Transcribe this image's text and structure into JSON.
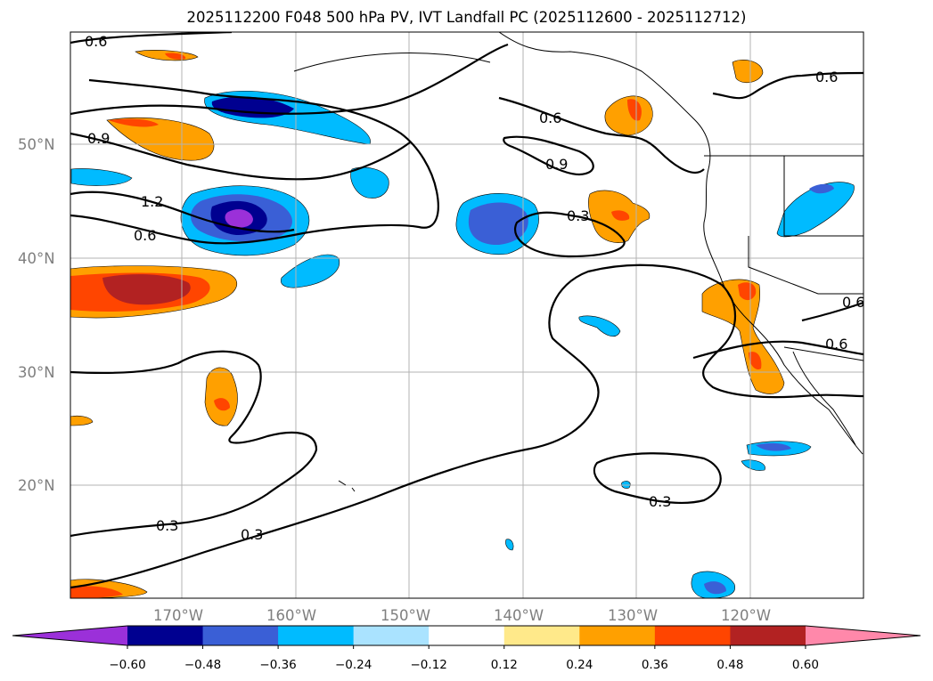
{
  "title": "2025112200 F048 500 hPa PV, IVT Landfall PC (2025112600 - 2025112712)",
  "map": {
    "latitude_labels": [
      "50°N",
      "40°N",
      "30°N",
      "20°N"
    ],
    "longitude_labels": [
      "170°W",
      "160°W",
      "150°W",
      "140°W",
      "130°W",
      "120°W"
    ],
    "pv_contours": [
      "0.3",
      "0.6",
      "0.9",
      "1.2"
    ],
    "contour_labels": [
      "0.6",
      "0.9",
      "1.2",
      "0.6",
      "0.6",
      "0.9",
      "0.3",
      "0.6",
      "0.6",
      "0.6",
      "0.3",
      "0.3",
      "0.3"
    ]
  },
  "colorbar": {
    "ticks": [
      "−0.60",
      "−0.48",
      "−0.36",
      "−0.24",
      "−0.12",
      "0.12",
      "0.24",
      "0.36",
      "0.48",
      "0.60"
    ],
    "under_color": "#9b30d9",
    "over_color": "#ff88aa",
    "colors": [
      "#000090",
      "#3a5fd6",
      "#00bbff",
      "#aae3ff",
      "#ffffff",
      "#ffe98a",
      "#ffa000",
      "#ff4500",
      "#b22222"
    ]
  }
}
